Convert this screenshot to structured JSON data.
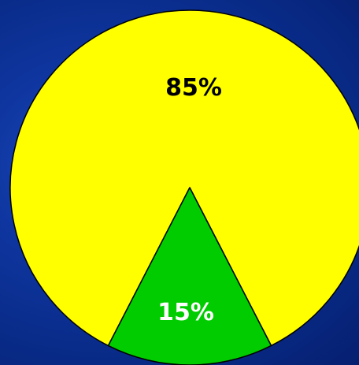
{
  "chart_data": {
    "type": "pie",
    "slices": [
      {
        "label": "85%",
        "value": 85,
        "color": "#ffff00",
        "label_color": "#000000"
      },
      {
        "label": "15%",
        "value": 15,
        "color": "#00cc00",
        "label_color": "#ffffff"
      }
    ]
  },
  "background_color": "#0b2a8a"
}
